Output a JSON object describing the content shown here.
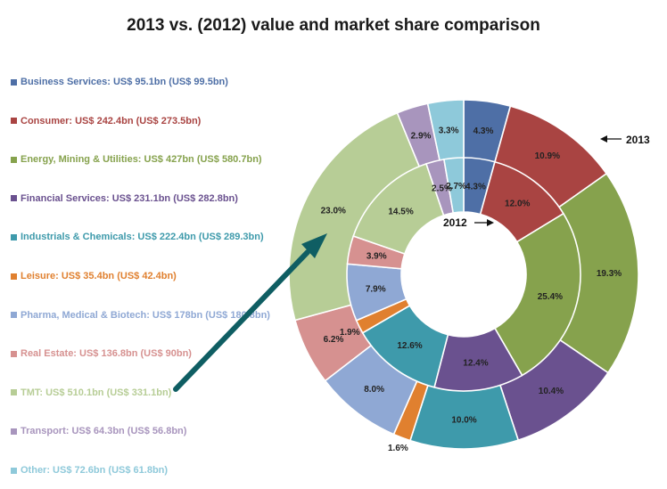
{
  "title": "2013 vs. (2012) value and market share comparison",
  "ring_labels": {
    "outer": "2013",
    "inner": "2012"
  },
  "chart_data": {
    "type": "pie",
    "subtype": "double-donut",
    "title": "2013 vs. (2012) value and market share comparison",
    "legend_position": "left",
    "legend": [
      {
        "label": "Business Services: US$ 95.1bn (US$ 99.5bn)",
        "color": "#4e6fa6"
      },
      {
        "label": "Consumer: US$ 242.4bn (US$ 273.5bn)",
        "color": "#a94442"
      },
      {
        "label": "Energy, Mining & Utilities: US$ 427bn (US$ 580.7bn)",
        "color": "#86a24d"
      },
      {
        "label": "Financial Services: US$ 231.1bn (US$ 282.8bn)",
        "color": "#6a518f"
      },
      {
        "label": "Industrials & Chemicals: US$ 222.4bn (US$ 289.3bn)",
        "color": "#3e9aab"
      },
      {
        "label": "Leisure: US$ 35.4bn (US$ 42.4bn)",
        "color": "#e0802f"
      },
      {
        "label": "Pharma, Medical & Biotech: US$ 178bn (US$ 180.8bn)",
        "color": "#8fa8d4"
      },
      {
        "label": "Real Estate: US$ 136.8bn (US$ 90bn)",
        "color": "#d69190"
      },
      {
        "label": "TMT: US$ 510.1bn (US$ 331.1bn)",
        "color": "#b7cd96"
      },
      {
        "label": "Transport: US$ 64.3bn (US$ 56.8bn)",
        "color": "#a895bd"
      },
      {
        "label": "Other: US$ 72.6bn (US$ 61.8bn)",
        "color": "#8ec9da"
      }
    ],
    "series": [
      {
        "name": "2013",
        "ring": "outer",
        "values": [
          4.3,
          10.9,
          19.3,
          10.4,
          10.0,
          1.6,
          8.0,
          6.2,
          23.0,
          2.9,
          3.3
        ],
        "labels": [
          "4.3%",
          "10.9%",
          "19.3%",
          "10.4%",
          "10.0%",
          "1.6%",
          "8.0%",
          "6.2%",
          "23.0%",
          "2.9%",
          "3.3%"
        ]
      },
      {
        "name": "2012",
        "ring": "inner",
        "values": [
          4.3,
          12.0,
          25.4,
          12.4,
          12.6,
          1.9,
          7.9,
          3.9,
          14.5,
          2.5,
          2.7
        ],
        "labels": [
          "4.3%",
          "12.0%",
          "25.4%",
          "12.4%",
          "12.6%",
          "1.9%",
          "7.9%",
          "3.9%",
          "14.5%",
          "2.5%",
          "2.7%"
        ]
      }
    ]
  }
}
